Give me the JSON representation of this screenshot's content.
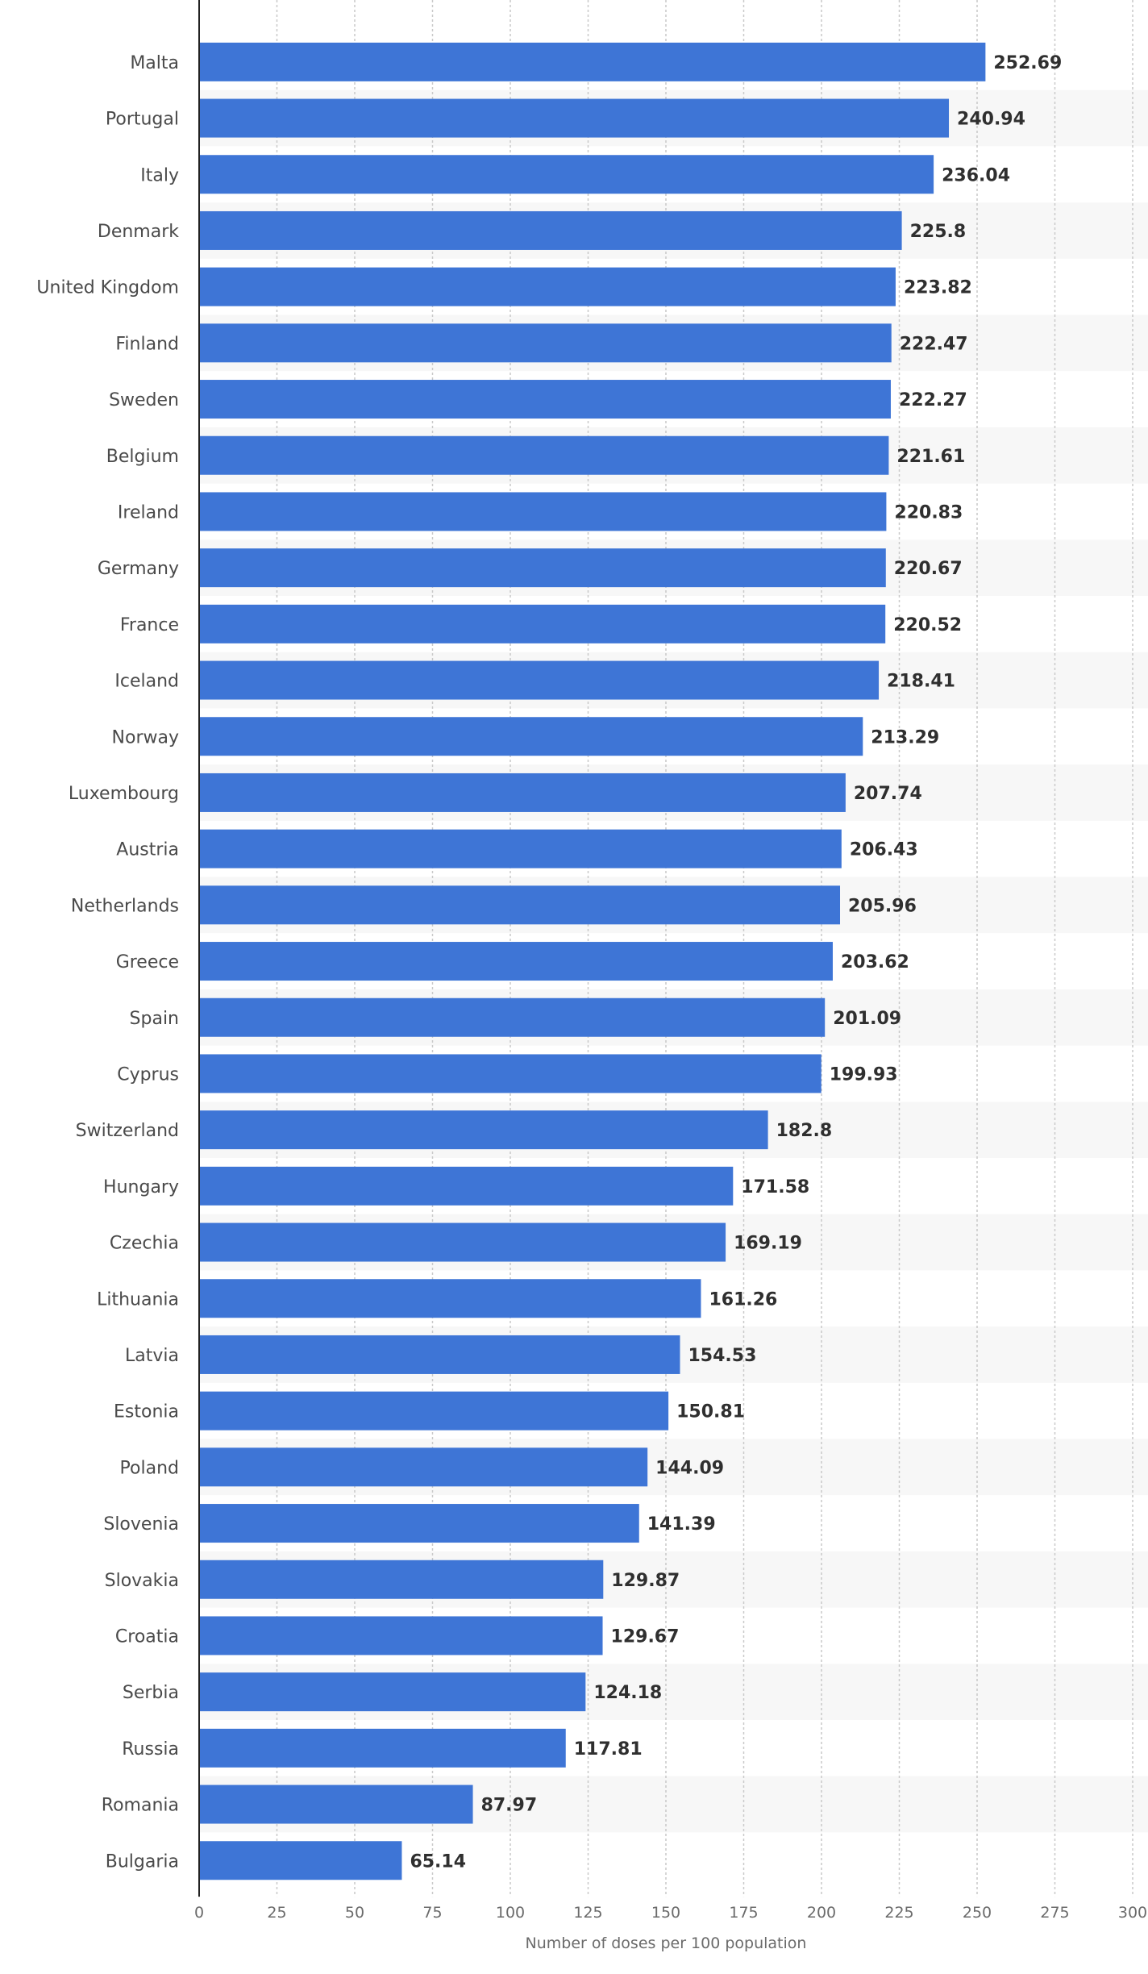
{
  "chart_data": {
    "type": "bar",
    "orientation": "horizontal",
    "categories": [
      "Malta",
      "Portugal",
      "Italy",
      "Denmark",
      "United Kingdom",
      "Finland",
      "Sweden",
      "Belgium",
      "Ireland",
      "Germany",
      "France",
      "Iceland",
      "Norway",
      "Luxembourg",
      "Austria",
      "Netherlands",
      "Greece",
      "Spain",
      "Cyprus",
      "Switzerland",
      "Hungary",
      "Czechia",
      "Lithuania",
      "Latvia",
      "Estonia",
      "Poland",
      "Slovenia",
      "Slovakia",
      "Croatia",
      "Serbia",
      "Russia",
      "Romania",
      "Bulgaria"
    ],
    "values": [
      252.69,
      240.94,
      236.04,
      225.8,
      223.82,
      222.47,
      222.27,
      221.61,
      220.83,
      220.67,
      220.52,
      218.41,
      213.29,
      207.74,
      206.43,
      205.96,
      203.62,
      201.09,
      199.93,
      182.8,
      171.58,
      169.19,
      161.26,
      154.53,
      150.81,
      144.09,
      141.39,
      129.87,
      129.67,
      124.18,
      117.81,
      87.97,
      65.14
    ],
    "value_labels": [
      "252.69",
      "240.94",
      "236.04",
      "225.8",
      "223.82",
      "222.47",
      "222.27",
      "221.61",
      "220.83",
      "220.67",
      "220.52",
      "218.41",
      "213.29",
      "207.74",
      "206.43",
      "205.96",
      "203.62",
      "201.09",
      "199.93",
      "182.8",
      "171.58",
      "169.19",
      "161.26",
      "154.53",
      "150.81",
      "144.09",
      "141.39",
      "129.87",
      "129.67",
      "124.18",
      "117.81",
      "87.97",
      "65.14"
    ],
    "xlabel": "Number of doses per 100 population",
    "ylabel": "",
    "xlim": [
      0,
      300
    ],
    "xticks": [
      "0",
      "25",
      "50",
      "75",
      "100",
      "125",
      "150",
      "175",
      "200",
      "225",
      "250",
      "275",
      "300"
    ],
    "grid": true,
    "legend": "none",
    "colors": {
      "bar": "#3e75d6",
      "band": "#f7f7f7",
      "grid": "#c9c9c9",
      "axis": "#222222"
    }
  }
}
